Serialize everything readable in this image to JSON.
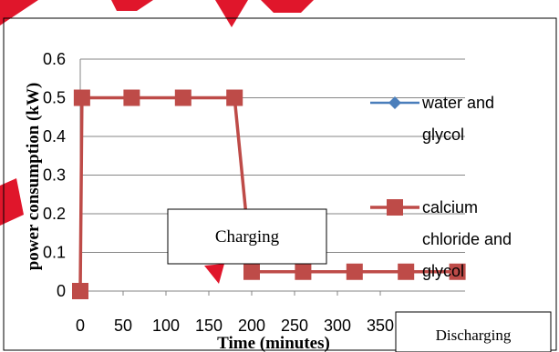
{
  "chart_data": {
    "type": "line",
    "xlabel": "Time (minutes)",
    "ylabel": "power consumption (kW)",
    "ylim": [
      0,
      0.6
    ],
    "y_ticks": [
      "0",
      "0.1",
      "0.2",
      "0.3",
      "0.4",
      "0.5",
      "0.6"
    ],
    "x_ticks": [
      "0",
      "50",
      "100",
      "150",
      "200",
      "250",
      "300",
      "350"
    ],
    "grid": "horizontal",
    "legend_position": "right",
    "series": [
      {
        "name": "water and glycol",
        "legend_lines": [
          "water and",
          "glycol"
        ],
        "color": "#4a7ebb",
        "marker": "diamond",
        "x": [
          0,
          0
        ],
        "y": [
          0.5,
          0.5
        ]
      },
      {
        "name": "calcium chloride and glycol",
        "legend_lines": [
          "calcium",
          "chloride and",
          "glycol"
        ],
        "color": "#be4b48",
        "marker": "square",
        "x": [
          0,
          2,
          60,
          120,
          180,
          200,
          260,
          320,
          380,
          440
        ],
        "y": [
          0,
          0.5,
          0.5,
          0.5,
          0.5,
          0.05,
          0.05,
          0.05,
          0.05,
          0.05
        ]
      }
    ],
    "annotations": [
      "Charging",
      "Discharging"
    ]
  },
  "accent_colors": {
    "watermark": "#e0162b"
  }
}
